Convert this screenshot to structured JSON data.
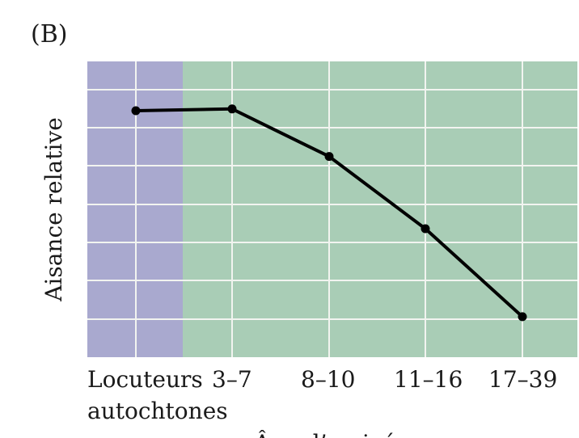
{
  "figure": {
    "panel_label": "(B)"
  },
  "chart_data": {
    "type": "line",
    "categories": [
      "Locuteurs autochtones",
      "3–7",
      "8–10",
      "11–16",
      "17–39"
    ],
    "category_lines": [
      [
        "Locuteurs",
        "autochtones"
      ],
      [
        "3–7"
      ],
      [
        "8–10"
      ],
      [
        "11–16"
      ],
      [
        "17–39"
      ]
    ],
    "values": [
      7.0,
      7.05,
      5.7,
      3.65,
      1.15
    ],
    "series": [
      {
        "values": [
          7.0,
          7.05,
          5.7,
          3.65,
          1.15
        ]
      }
    ],
    "ylabel": "Aisance relative",
    "xlabel": "Âge d’arrivée",
    "ylim": [
      0,
      8.4
    ],
    "grid": true,
    "highlight_first_category": true,
    "colors": {
      "native_region": "#a9a9cf",
      "immigrant_region": "#a9cdb6",
      "grid": "#f2f4f0",
      "line": "#000000",
      "marker": "#000000"
    }
  }
}
